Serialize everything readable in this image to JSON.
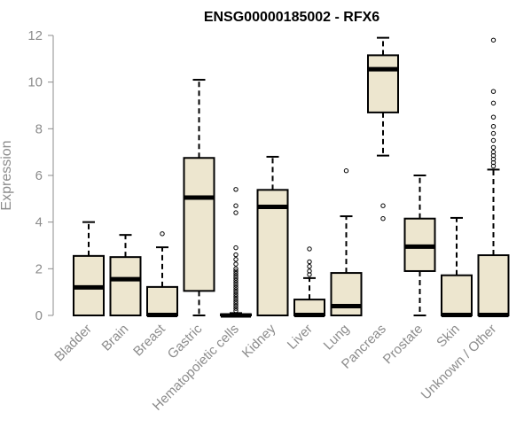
{
  "chart_data": {
    "type": "boxplot",
    "title": "ENSG00000185002 - RFX6",
    "xlabel": "",
    "ylabel": "Expression",
    "ylim": [
      0,
      12
    ],
    "yticks": [
      0,
      2,
      4,
      6,
      8,
      10,
      12
    ],
    "grid": false,
    "legend": "none",
    "colors": {
      "box_fill": "#ede6cf",
      "box_stroke": "#000000",
      "median": "#000000",
      "axis": "#8c8c8c",
      "label": "#8c8c8c"
    },
    "categories": [
      "Bladder",
      "Brain",
      "Breast",
      "Gastric",
      "Hematopoietic cells",
      "Kidney",
      "Liver",
      "Lung",
      "Pancreas",
      "Prostate",
      "Skin",
      "Unknown / Other"
    ],
    "boxes": [
      {
        "category": "Bladder",
        "whisker_low": 0,
        "q1": 0,
        "median": 1.2,
        "q3": 2.55,
        "whisker_high": 4.0,
        "outliers": []
      },
      {
        "category": "Brain",
        "whisker_low": 0,
        "q1": 0,
        "median": 1.55,
        "q3": 2.5,
        "whisker_high": 3.45,
        "outliers": []
      },
      {
        "category": "Breast",
        "whisker_low": 0,
        "q1": 0,
        "median": 0.02,
        "q3": 1.22,
        "whisker_high": 2.92,
        "outliers": [
          3.5
        ]
      },
      {
        "category": "Gastric",
        "whisker_low": 0,
        "q1": 1.05,
        "median": 5.05,
        "q3": 6.75,
        "whisker_high": 10.1,
        "outliers": []
      },
      {
        "category": "Hematopoietic cells",
        "whisker_low": 0,
        "q1": 0,
        "median": 0.0,
        "q3": 0.05,
        "whisker_high": 0.1,
        "outliers": [
          0.2,
          0.3,
          0.4,
          0.5,
          0.6,
          0.7,
          0.8,
          0.9,
          1.0,
          1.1,
          1.2,
          1.3,
          1.4,
          1.5,
          1.6,
          1.7,
          1.8,
          1.9,
          2.0,
          2.2,
          2.4,
          2.6,
          2.9,
          4.4,
          4.7,
          5.4
        ]
      },
      {
        "category": "Kidney",
        "whisker_low": 0,
        "q1": 0,
        "median": 4.65,
        "q3": 5.38,
        "whisker_high": 6.8,
        "outliers": []
      },
      {
        "category": "Liver",
        "whisker_low": 0,
        "q1": 0,
        "median": 0.02,
        "q3": 0.68,
        "whisker_high": 1.6,
        "outliers": [
          1.75,
          1.9,
          2.1,
          2.3,
          2.85
        ]
      },
      {
        "category": "Lung",
        "whisker_low": 0,
        "q1": 0,
        "median": 0.4,
        "q3": 1.82,
        "whisker_high": 4.25,
        "outliers": [
          6.2
        ]
      },
      {
        "category": "Pancreas",
        "whisker_low": 6.85,
        "q1": 8.7,
        "median": 10.55,
        "q3": 11.15,
        "whisker_high": 11.9,
        "outliers": [
          4.15,
          4.7
        ]
      },
      {
        "category": "Prostate",
        "whisker_low": 0,
        "q1": 1.9,
        "median": 2.95,
        "q3": 4.15,
        "whisker_high": 6.0,
        "outliers": []
      },
      {
        "category": "Skin",
        "whisker_low": 0,
        "q1": 0,
        "median": 0.02,
        "q3": 1.72,
        "whisker_high": 4.18,
        "outliers": []
      },
      {
        "category": "Unknown / Other",
        "whisker_low": 0,
        "q1": 0,
        "median": 0.02,
        "q3": 2.58,
        "whisker_high": 6.25,
        "outliers": [
          6.4,
          6.55,
          6.7,
          6.85,
          7.0,
          7.2,
          7.5,
          7.8,
          8.1,
          8.5,
          9.1,
          9.6,
          11.8
        ]
      }
    ]
  }
}
